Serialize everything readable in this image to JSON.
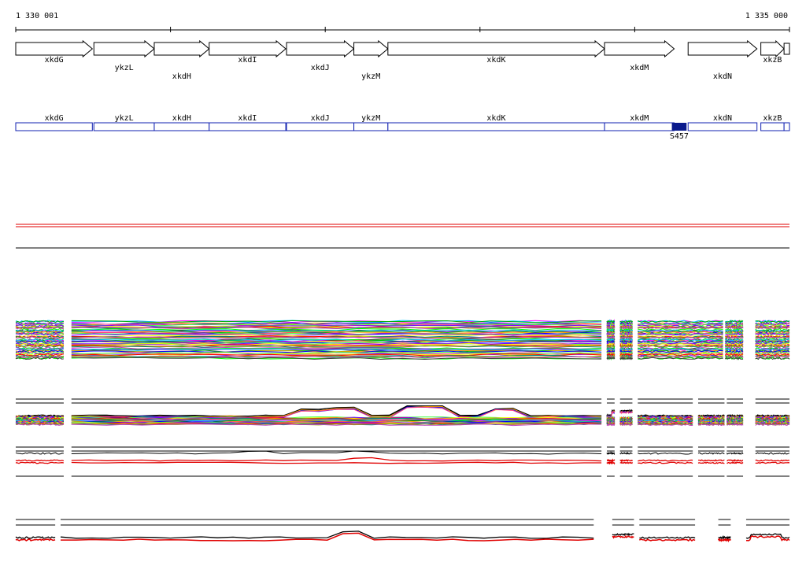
{
  "coordinates": {
    "start": "1 330 001",
    "end": "1 335 000"
  },
  "genes": [
    {
      "name": "xkdG",
      "start": 0.0,
      "end": 0.099,
      "label_row": 0
    },
    {
      "name": "ykzL",
      "start": 0.101,
      "end": 0.179,
      "label_row": 1
    },
    {
      "name": "xkdH",
      "start": 0.179,
      "end": 0.25,
      "label_row": 2
    },
    {
      "name": "xkdI",
      "start": 0.25,
      "end": 0.349,
      "label_row": 0
    },
    {
      "name": "xkdJ",
      "start": 0.35,
      "end": 0.437,
      "label_row": 1
    },
    {
      "name": "ykzM",
      "start": 0.437,
      "end": 0.481,
      "label_row": 2
    },
    {
      "name": "xkdK",
      "start": 0.481,
      "end": 0.761,
      "label_row": 0
    },
    {
      "name": "xkdM",
      "start": 0.761,
      "end": 0.851,
      "label_row": 1
    },
    {
      "name": "xkdN",
      "start": 0.869,
      "end": 0.958,
      "label_row": 2
    },
    {
      "name": "xkzB",
      "start": 0.963,
      "end": 0.993,
      "label_row": 0
    }
  ],
  "extra_small_gene": {
    "start": 0.993,
    "end": 1.0
  },
  "feature": {
    "label": "S457",
    "start": 0.848,
    "end": 0.867
  },
  "colors": {
    "gene_outline": "#000000",
    "feature_track": "#1020b0",
    "feature_fill": "#0a1a8c",
    "track_black": "#000000",
    "track_red": "#e00000"
  },
  "expression_palette": [
    "#ff00ff",
    "#00c8ff",
    "#00b000",
    "#ffa000",
    "#0000ff",
    "#ff4080",
    "#40ff40",
    "#8000ff",
    "#ffff00",
    "#ff0000",
    "#008080",
    "#a0a000",
    "#c040c0",
    "#00ff00",
    "#404040"
  ],
  "gaps_panel1": [
    [
      0.062,
      0.072
    ],
    [
      0.757,
      0.764
    ],
    [
      0.774,
      0.781
    ],
    [
      0.797,
      0.804
    ],
    [
      0.914,
      0.917
    ],
    [
      0.94,
      0.956
    ]
  ],
  "gaps_panel2": [
    [
      0.062,
      0.072
    ],
    [
      0.757,
      0.764
    ],
    [
      0.774,
      0.781
    ],
    [
      0.797,
      0.804
    ],
    [
      0.875,
      0.882
    ],
    [
      0.916,
      0.919
    ],
    [
      0.94,
      0.956
    ]
  ],
  "gaps_panel3": [
    [
      0.051,
      0.058
    ],
    [
      0.747,
      0.771
    ],
    [
      0.799,
      0.806
    ],
    [
      0.878,
      0.908
    ],
    [
      0.924,
      0.944
    ]
  ]
}
